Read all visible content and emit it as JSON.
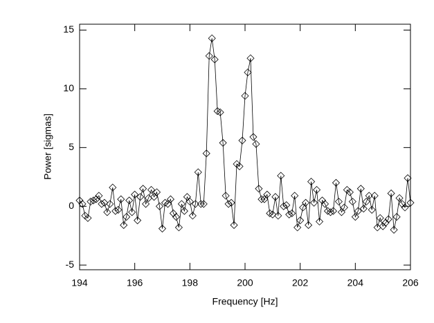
{
  "chart_data": {
    "type": "line",
    "xlabel": "Frequency [Hz]",
    "ylabel": "Power [sigmas]",
    "x": [
      194.0,
      194.1,
      194.2,
      194.3,
      194.4,
      194.5,
      194.6,
      194.7,
      194.8,
      194.9,
      195.0,
      195.1,
      195.2,
      195.3,
      195.4,
      195.5,
      195.6,
      195.7,
      195.8,
      195.9,
      196.0,
      196.1,
      196.2,
      196.3,
      196.4,
      196.5,
      196.6,
      196.7,
      196.8,
      196.9,
      197.0,
      197.1,
      197.2,
      197.3,
      197.4,
      197.5,
      197.6,
      197.7,
      197.8,
      197.9,
      198.0,
      198.1,
      198.2,
      198.3,
      198.4,
      198.5,
      198.6,
      198.7,
      198.8,
      198.9,
      199.0,
      199.1,
      199.2,
      199.3,
      199.4,
      199.5,
      199.6,
      199.7,
      199.8,
      199.9,
      200.0,
      200.1,
      200.2,
      200.3,
      200.4,
      200.5,
      200.6,
      200.7,
      200.8,
      200.9,
      201.0,
      201.1,
      201.2,
      201.3,
      201.4,
      201.5,
      201.6,
      201.7,
      201.8,
      201.9,
      202.0,
      202.1,
      202.2,
      202.3,
      202.4,
      202.5,
      202.6,
      202.7,
      202.8,
      202.9,
      203.0,
      203.1,
      203.2,
      203.3,
      203.4,
      203.5,
      203.6,
      203.7,
      203.8,
      203.9,
      204.0,
      204.1,
      204.2,
      204.3,
      204.4,
      204.5,
      204.6,
      204.7,
      204.8,
      204.9,
      205.0,
      205.1,
      205.2,
      205.3,
      205.4,
      205.5,
      205.6,
      205.7,
      205.8,
      205.9,
      206.0
    ],
    "series": [
      {
        "color": "#000000",
        "values": [
          0.5,
          0.2,
          -0.8,
          -1.0,
          0.4,
          0.5,
          0.6,
          0.9,
          0.2,
          0.3,
          -0.5,
          0.2,
          1.6,
          -0.4,
          -0.3,
          0.6,
          -1.6,
          -0.9,
          0.5,
          -0.5,
          1.0,
          -1.2,
          0.8,
          1.5,
          0.2,
          0.7,
          1.4,
          0.8,
          1.2,
          0.0,
          -1.9,
          0.3,
          0.2,
          0.6,
          -0.6,
          -0.9,
          -1.8,
          0.2,
          -0.4,
          0.8,
          0.4,
          -0.8,
          0.2,
          2.9,
          0.2,
          0.2,
          4.5,
          12.8,
          14.3,
          12.5,
          8.1,
          8.0,
          5.4,
          0.9,
          0.2,
          0.3,
          -1.6,
          3.6,
          3.4,
          5.6,
          9.4,
          11.4,
          12.6,
          5.9,
          5.3,
          1.5,
          0.6,
          0.6,
          1.0,
          -0.6,
          -0.7,
          0.8,
          -0.8,
          2.6,
          0.0,
          0.1,
          -0.7,
          -0.6,
          0.9,
          -1.8,
          -1.2,
          -0.1,
          0.3,
          -1.6,
          2.1,
          0.3,
          1.4,
          -1.3,
          0.5,
          0.2,
          -0.4,
          -0.5,
          -0.4,
          2.0,
          0.4,
          -0.5,
          -0.1,
          1.4,
          1.2,
          0.4,
          -0.9,
          -0.4,
          1.5,
          -0.2,
          0.4,
          0.9,
          -0.3,
          0.9,
          -1.8,
          -1.0,
          -1.7,
          -1.4,
          -1.1,
          1.1,
          -2.0,
          -0.9,
          0.7,
          0.2,
          -0.1,
          2.4,
          0.3
        ]
      }
    ],
    "xlim": [
      194,
      206
    ],
    "xticks": [
      194,
      196,
      198,
      200,
      202,
      204,
      206
    ],
    "ylim": [
      -5.4,
      15.5
    ],
    "yticks": [
      -5,
      0,
      5,
      10,
      15
    ],
    "marker": "diamond"
  }
}
